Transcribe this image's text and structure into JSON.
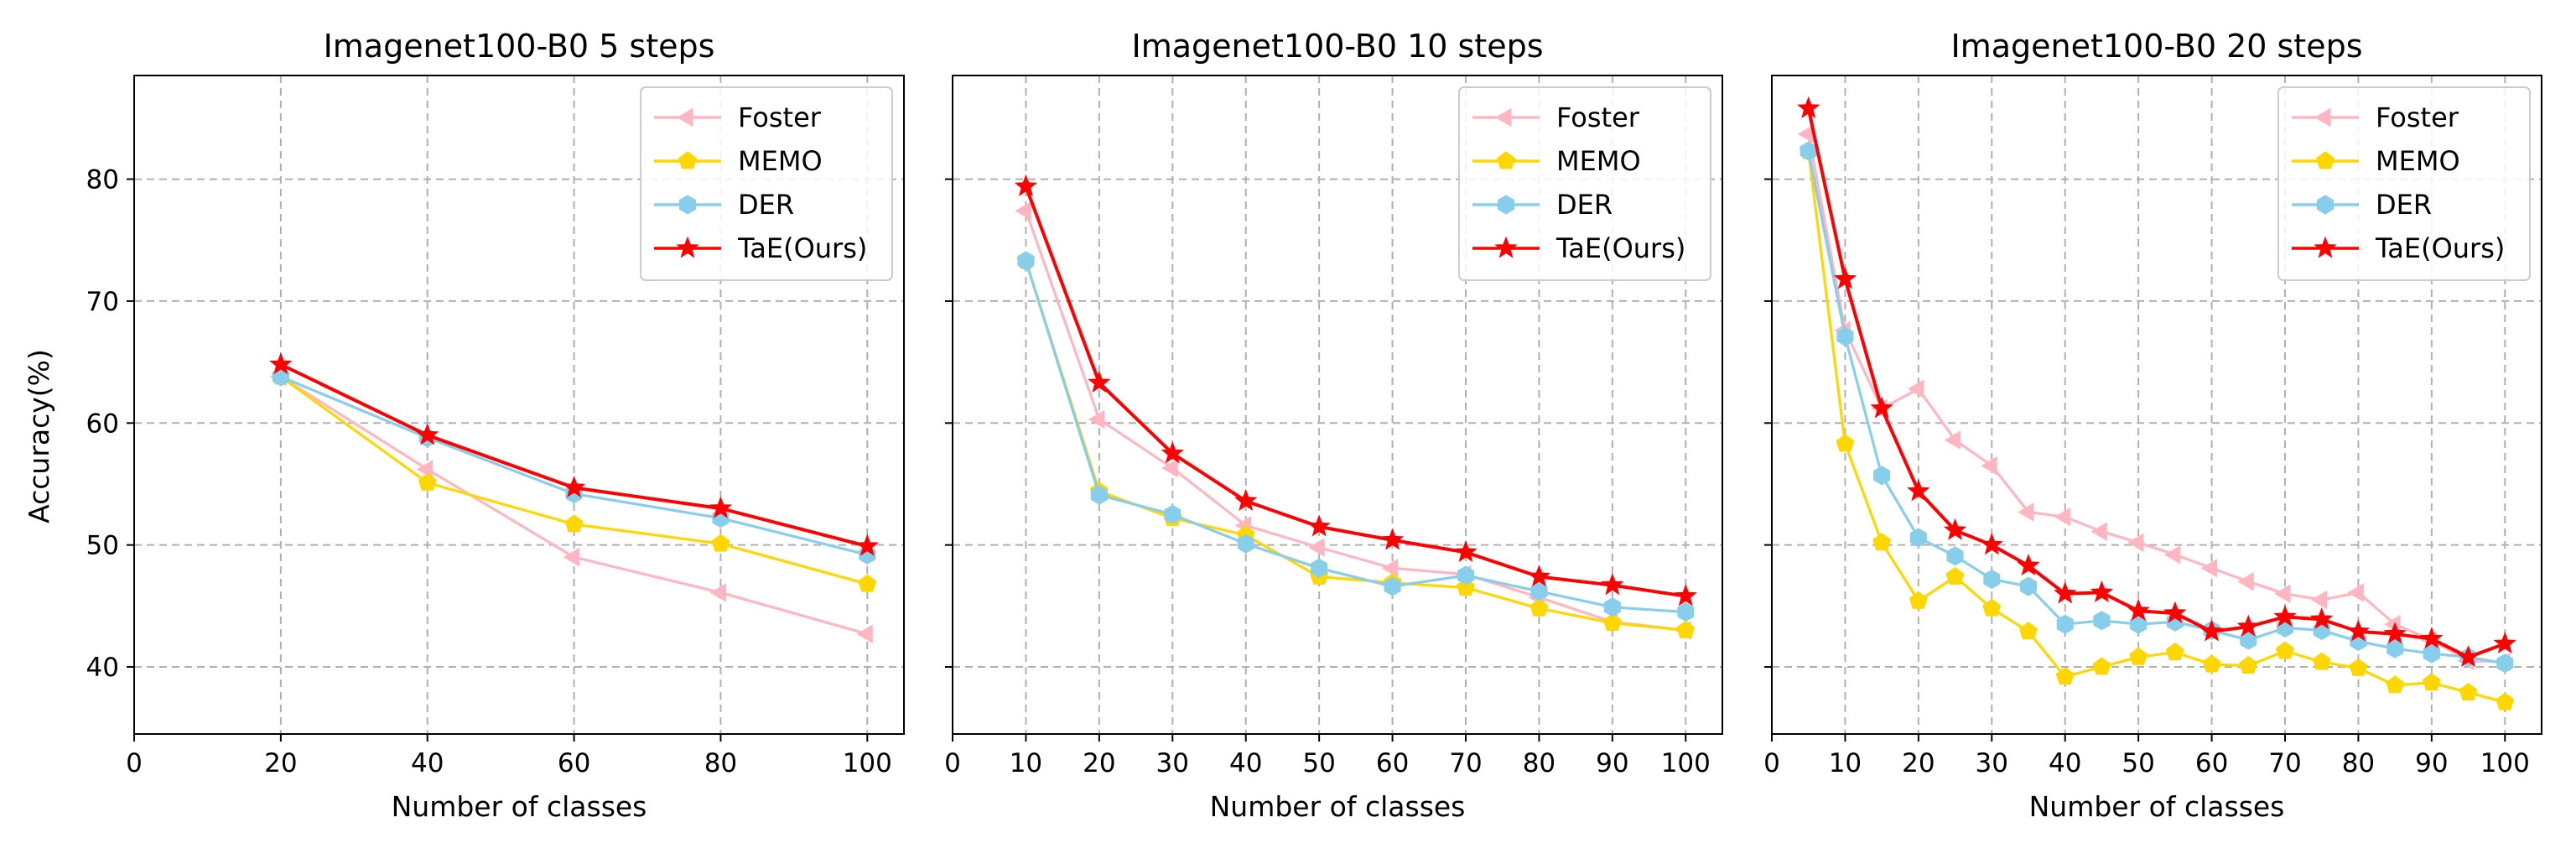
{
  "figure": {
    "ylabel": "Accuracy(%)",
    "legend_location": "top-right"
  },
  "colors": {
    "Foster": "#ffb6c1",
    "MEMO": "#ffd700",
    "DER": "#87ceeb",
    "TaE(Ours)": "#ff0000"
  },
  "chart_data": [
    {
      "type": "line",
      "title": "Imagenet100-B0 5 steps",
      "xlabel": "Number of classes",
      "ylabel": "Accuracy(%)",
      "xlim": [
        0,
        105
      ],
      "ylim": [
        34.5,
        88.5
      ],
      "xticks": [
        0,
        20,
        40,
        60,
        80,
        100
      ],
      "yticks": [
        40,
        50,
        60,
        70,
        80
      ],
      "grid": true,
      "series": [
        {
          "name": "Foster",
          "marker": "triangle-left",
          "x": [
            20,
            40,
            60,
            80,
            100
          ],
          "values": [
            63.8,
            56.2,
            49.0,
            46.1,
            42.7
          ]
        },
        {
          "name": "MEMO",
          "marker": "pentagon",
          "x": [
            20,
            40,
            60,
            80,
            100
          ],
          "values": [
            63.8,
            55.1,
            51.7,
            50.1,
            46.8
          ]
        },
        {
          "name": "DER",
          "marker": "hexagon",
          "x": [
            20,
            40,
            60,
            80,
            100
          ],
          "values": [
            63.8,
            58.8,
            54.2,
            52.2,
            49.2
          ]
        },
        {
          "name": "TaE(Ours)",
          "marker": "star",
          "x": [
            20,
            40,
            60,
            80,
            100
          ],
          "values": [
            64.8,
            59.0,
            54.7,
            53.0,
            49.9
          ]
        }
      ]
    },
    {
      "type": "line",
      "title": "Imagenet100-B0 10 steps",
      "xlabel": "Number of classes",
      "ylabel": "",
      "xlim": [
        0,
        105
      ],
      "ylim": [
        34.5,
        88.5
      ],
      "xticks": [
        0,
        10,
        20,
        30,
        40,
        50,
        60,
        70,
        80,
        90,
        100
      ],
      "yticks": [
        40,
        50,
        60,
        70,
        80
      ],
      "grid": true,
      "series": [
        {
          "name": "Foster",
          "marker": "triangle-left",
          "x": [
            10,
            20,
            30,
            40,
            50,
            60,
            70,
            80,
            90,
            100
          ],
          "values": [
            77.4,
            60.3,
            56.3,
            51.6,
            49.8,
            48.1,
            47.6,
            45.7,
            43.7,
            43.0
          ]
        },
        {
          "name": "MEMO",
          "marker": "pentagon",
          "x": [
            10,
            20,
            30,
            40,
            50,
            60,
            70,
            80,
            90,
            100
          ],
          "values": [
            73.3,
            54.4,
            52.2,
            50.8,
            47.4,
            46.9,
            46.5,
            44.8,
            43.6,
            43.0
          ]
        },
        {
          "name": "DER",
          "marker": "hexagon",
          "x": [
            10,
            20,
            30,
            40,
            50,
            60,
            70,
            80,
            90,
            100
          ],
          "values": [
            73.3,
            54.1,
            52.5,
            50.1,
            48.1,
            46.6,
            47.5,
            46.2,
            44.9,
            44.5
          ]
        },
        {
          "name": "TaE(Ours)",
          "marker": "star",
          "x": [
            10,
            20,
            30,
            40,
            50,
            60,
            70,
            80,
            90,
            100
          ],
          "values": [
            79.4,
            63.3,
            57.5,
            53.6,
            51.5,
            50.4,
            49.4,
            47.4,
            46.7,
            45.8
          ]
        }
      ]
    },
    {
      "type": "line",
      "title": "Imagenet100-B0 20 steps",
      "xlabel": "Number of classes",
      "ylabel": "",
      "xlim": [
        0,
        105
      ],
      "ylim": [
        34.5,
        88.5
      ],
      "xticks": [
        0,
        10,
        20,
        30,
        40,
        50,
        60,
        70,
        80,
        90,
        100
      ],
      "yticks": [
        40,
        50,
        60,
        70,
        80
      ],
      "grid": true,
      "series": [
        {
          "name": "Foster",
          "marker": "triangle-left",
          "x": [
            5,
            10,
            15,
            20,
            25,
            30,
            35,
            40,
            45,
            50,
            55,
            60,
            65,
            70,
            75,
            80,
            85,
            90,
            95,
            100
          ],
          "values": [
            83.7,
            67.6,
            61.2,
            62.8,
            58.6,
            56.5,
            52.7,
            52.3,
            51.1,
            50.2,
            49.2,
            48.1,
            47.0,
            46.0,
            45.5,
            46.1,
            43.5,
            42.2,
            40.5,
            40.4
          ]
        },
        {
          "name": "MEMO",
          "marker": "pentagon",
          "x": [
            5,
            10,
            15,
            20,
            25,
            30,
            35,
            40,
            45,
            50,
            55,
            60,
            65,
            70,
            75,
            80,
            85,
            90,
            95,
            100
          ],
          "values": [
            82.3,
            58.3,
            50.2,
            45.4,
            47.4,
            44.8,
            42.9,
            39.2,
            40.0,
            40.8,
            41.2,
            40.2,
            40.1,
            41.3,
            40.4,
            39.9,
            38.5,
            38.7,
            37.9,
            37.1
          ]
        },
        {
          "name": "DER",
          "marker": "hexagon",
          "x": [
            5,
            10,
            15,
            20,
            25,
            30,
            35,
            40,
            45,
            50,
            55,
            60,
            65,
            70,
            75,
            80,
            85,
            90,
            95,
            100
          ],
          "values": [
            82.3,
            67.1,
            55.7,
            50.6,
            49.1,
            47.2,
            46.6,
            43.5,
            43.8,
            43.5,
            43.7,
            43.0,
            42.2,
            43.2,
            43.0,
            42.1,
            41.5,
            41.1,
            40.8,
            40.3
          ]
        },
        {
          "name": "TaE(Ours)",
          "marker": "star",
          "x": [
            5,
            10,
            15,
            20,
            25,
            30,
            35,
            40,
            45,
            50,
            55,
            60,
            65,
            70,
            75,
            80,
            85,
            90,
            95,
            100
          ],
          "values": [
            85.8,
            71.8,
            61.2,
            54.4,
            51.2,
            50.0,
            48.3,
            46.0,
            46.1,
            44.6,
            44.4,
            42.9,
            43.3,
            44.1,
            43.9,
            42.9,
            42.7,
            42.3,
            40.8,
            41.9
          ]
        }
      ]
    }
  ]
}
